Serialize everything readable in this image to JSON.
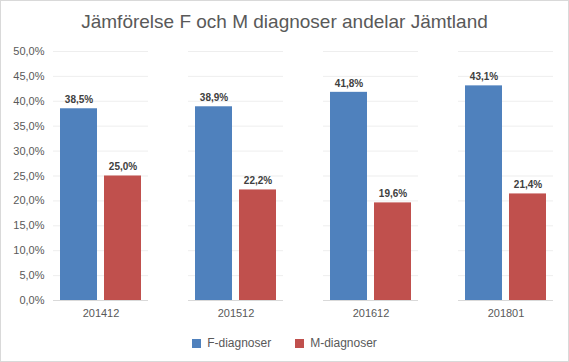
{
  "chart_data": {
    "type": "bar",
    "title": "Jämförelse F och M diagnoser andelar Jämtland",
    "categories": [
      "201412",
      "201512",
      "201612",
      "201801"
    ],
    "series": [
      {
        "name": "F-diagnoser",
        "color": "#4f81bd",
        "values": [
          38.5,
          38.9,
          41.8,
          43.1
        ],
        "value_labels": [
          "38,5%",
          "38,9%",
          "41,8%",
          "43,1%"
        ]
      },
      {
        "name": "M-diagnoser",
        "color": "#c0504d",
        "values": [
          25.0,
          22.2,
          19.6,
          21.4
        ],
        "value_labels": [
          "25,0%",
          "22,2%",
          "19,6%",
          "21,4%"
        ]
      }
    ],
    "ylim": [
      0,
      50
    ],
    "yticks": [
      {
        "value": 0,
        "label": "0,0%"
      },
      {
        "value": 5,
        "label": "5,0%"
      },
      {
        "value": 10,
        "label": "10,0%"
      },
      {
        "value": 15,
        "label": "15,0%"
      },
      {
        "value": 20,
        "label": "20,0%"
      },
      {
        "value": 25,
        "label": "25,0%"
      },
      {
        "value": 30,
        "label": "30,0%"
      },
      {
        "value": 35,
        "label": "35,0%"
      },
      {
        "value": 40,
        "label": "40,0%"
      },
      {
        "value": 45,
        "label": "45,0%"
      },
      {
        "value": 50,
        "label": "50,0%"
      }
    ],
    "grid": true,
    "data_labels": true,
    "legend": "bottom"
  }
}
